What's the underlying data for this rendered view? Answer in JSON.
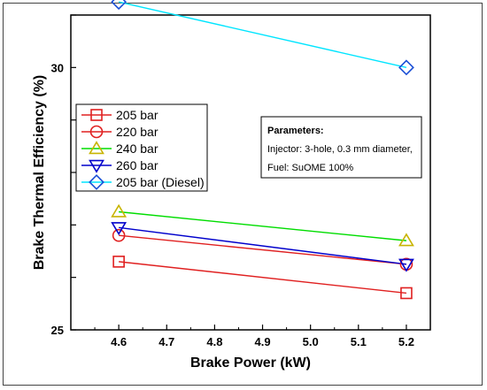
{
  "chart_data": {
    "type": "line",
    "title": "",
    "xlabel": "Brake Power (kW)",
    "ylabel": "Brake Thermal Efficiency (%)",
    "xlim": [
      4.5,
      5.25
    ],
    "ylim": [
      25,
      31
    ],
    "x": [
      4.6,
      5.2
    ],
    "x_ticks": [
      "4.6",
      "4.7",
      "4.8",
      "4.9",
      "5.0",
      "5.1",
      "5.2"
    ],
    "y_ticks_labeled": [
      "25",
      "30"
    ],
    "legend_position": "upper-left",
    "grid": false,
    "series": [
      {
        "name": "205 bar",
        "values": [
          26.3,
          25.7
        ],
        "color": "#e02020",
        "marker": "square"
      },
      {
        "name": "220 bar",
        "values": [
          26.8,
          26.25
        ],
        "color": "#e02020",
        "marker": "circle"
      },
      {
        "name": "240 bar",
        "values": [
          27.25,
          26.7
        ],
        "color": "#00dd00",
        "marker": "triangle-up"
      },
      {
        "name": "260 bar",
        "values": [
          26.95,
          26.25
        ],
        "color": "#0000cc",
        "marker": "triangle-down"
      },
      {
        "name": "205 bar (Diesel)",
        "values": [
          31.25,
          30.0
        ],
        "color": "#00e5ff",
        "marker": "diamond"
      }
    ],
    "annotation": {
      "title": "Parameters:",
      "lines": [
        "Injector: 3-hole, 0.3 mm diameter,",
        "Fuel: SuOME 100%"
      ]
    }
  }
}
